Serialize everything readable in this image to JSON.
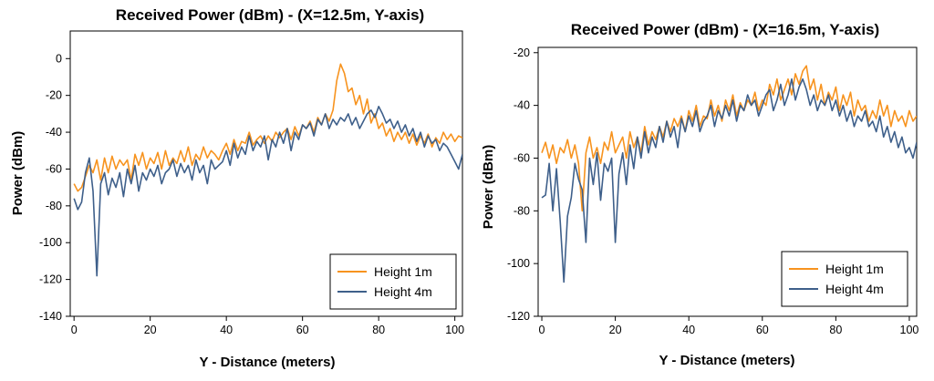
{
  "chart_data": [
    {
      "type": "line",
      "title": "Received Power (dBm) - (X=12.5m, Y-axis)",
      "xlabel": "Y - Distance (meters)",
      "ylabel": "Power (dBm)",
      "xlim": [
        -1,
        102
      ],
      "ylim": [
        -140,
        15
      ],
      "xticks": [
        0,
        20,
        40,
        60,
        80,
        100
      ],
      "yticks": [
        0,
        -20,
        -40,
        -60,
        -80,
        -100,
        -120,
        -140
      ],
      "grid": false,
      "legend_position": "bottom-right",
      "series": [
        {
          "name": "Height 1m",
          "color": "#F7931E",
          "x": [
            0,
            1,
            2,
            3,
            4,
            5,
            6,
            7,
            8,
            9,
            10,
            11,
            12,
            13,
            14,
            15,
            16,
            17,
            18,
            19,
            20,
            21,
            22,
            23,
            24,
            25,
            26,
            27,
            28,
            29,
            30,
            31,
            32,
            33,
            34,
            35,
            36,
            37,
            38,
            39,
            40,
            41,
            42,
            43,
            44,
            45,
            46,
            47,
            48,
            49,
            50,
            51,
            52,
            53,
            54,
            55,
            56,
            57,
            58,
            59,
            60,
            61,
            62,
            63,
            64,
            65,
            66,
            67,
            68,
            69,
            70,
            71,
            72,
            73,
            74,
            75,
            76,
            77,
            78,
            79,
            80,
            81,
            82,
            83,
            84,
            85,
            86,
            87,
            88,
            89,
            90,
            91,
            92,
            93,
            94,
            95,
            96,
            97,
            98,
            99,
            100,
            101,
            102
          ],
          "values": [
            -68,
            -72,
            -70,
            -64,
            -58,
            -62,
            -55,
            -66,
            -54,
            -62,
            -53,
            -60,
            -55,
            -58,
            -55,
            -66,
            -52,
            -58,
            -51,
            -60,
            -54,
            -57,
            -51,
            -60,
            -50,
            -58,
            -54,
            -57,
            -50,
            -56,
            -48,
            -58,
            -52,
            -55,
            -48,
            -54,
            -50,
            -52,
            -55,
            -50,
            -46,
            -52,
            -44,
            -50,
            -45,
            -46,
            -40,
            -47,
            -44,
            -42,
            -46,
            -42,
            -45,
            -40,
            -43,
            -40,
            -38,
            -44,
            -37,
            -42,
            -36,
            -38,
            -34,
            -40,
            -32,
            -36,
            -30,
            -34,
            -28,
            -12,
            -3,
            -8,
            -18,
            -16,
            -25,
            -20,
            -30,
            -22,
            -35,
            -30,
            -38,
            -35,
            -42,
            -38,
            -45,
            -40,
            -44,
            -40,
            -46,
            -41,
            -47,
            -42,
            -46,
            -41,
            -48,
            -43,
            -46,
            -40,
            -44,
            -41,
            -45,
            -42,
            -43
          ]
        },
        {
          "name": "Height 4m",
          "color": "#3E5F8A",
          "x": [
            0,
            1,
            2,
            3,
            4,
            5,
            6,
            7,
            8,
            9,
            10,
            11,
            12,
            13,
            14,
            15,
            16,
            17,
            18,
            19,
            20,
            21,
            22,
            23,
            24,
            25,
            26,
            27,
            28,
            29,
            30,
            31,
            32,
            33,
            34,
            35,
            36,
            37,
            38,
            39,
            40,
            41,
            42,
            43,
            44,
            45,
            46,
            47,
            48,
            49,
            50,
            51,
            52,
            53,
            54,
            55,
            56,
            57,
            58,
            59,
            60,
            61,
            62,
            63,
            64,
            65,
            66,
            67,
            68,
            69,
            70,
            71,
            72,
            73,
            74,
            75,
            76,
            77,
            78,
            79,
            80,
            81,
            82,
            83,
            84,
            85,
            86,
            87,
            88,
            89,
            90,
            91,
            92,
            93,
            94,
            95,
            96,
            97,
            98,
            99,
            100,
            101,
            102
          ],
          "values": [
            -76,
            -82,
            -78,
            -62,
            -54,
            -72,
            -118,
            -68,
            -62,
            -74,
            -65,
            -70,
            -62,
            -75,
            -60,
            -68,
            -58,
            -72,
            -62,
            -66,
            -60,
            -64,
            -58,
            -68,
            -62,
            -60,
            -55,
            -64,
            -57,
            -62,
            -58,
            -66,
            -55,
            -62,
            -58,
            -68,
            -55,
            -60,
            -58,
            -56,
            -50,
            -58,
            -46,
            -54,
            -48,
            -52,
            -42,
            -50,
            -45,
            -48,
            -42,
            -55,
            -44,
            -48,
            -40,
            -46,
            -38,
            -50,
            -40,
            -44,
            -36,
            -38,
            -35,
            -42,
            -33,
            -36,
            -30,
            -38,
            -33,
            -36,
            -32,
            -34,
            -30,
            -36,
            -32,
            -38,
            -34,
            -30,
            -28,
            -32,
            -26,
            -30,
            -35,
            -33,
            -38,
            -34,
            -40,
            -36,
            -42,
            -38,
            -45,
            -40,
            -48,
            -42,
            -46,
            -44,
            -50,
            -46,
            -48,
            -52,
            -56,
            -60,
            -52
          ]
        }
      ]
    },
    {
      "type": "line",
      "title": "Received Power (dBm) - (X=16.5m, Y-axis)",
      "xlabel": "Y - Distance (meters)",
      "ylabel": "Power (dBm)",
      "xlim": [
        -1,
        102
      ],
      "ylim": [
        -120,
        -18
      ],
      "xticks": [
        0,
        20,
        40,
        60,
        80,
        100
      ],
      "yticks": [
        -20,
        -40,
        -60,
        -80,
        -100,
        -120
      ],
      "grid": false,
      "legend_position": "bottom-right",
      "series": [
        {
          "name": "Height 1m",
          "color": "#F7931E",
          "x": [
            0,
            1,
            2,
            3,
            4,
            5,
            6,
            7,
            8,
            9,
            10,
            11,
            12,
            13,
            14,
            15,
            16,
            17,
            18,
            19,
            20,
            21,
            22,
            23,
            24,
            25,
            26,
            27,
            28,
            29,
            30,
            31,
            32,
            33,
            34,
            35,
            36,
            37,
            38,
            39,
            40,
            41,
            42,
            43,
            44,
            45,
            46,
            47,
            48,
            49,
            50,
            51,
            52,
            53,
            54,
            55,
            56,
            57,
            58,
            59,
            60,
            61,
            62,
            63,
            64,
            65,
            66,
            67,
            68,
            69,
            70,
            71,
            72,
            73,
            74,
            75,
            76,
            77,
            78,
            79,
            80,
            81,
            82,
            83,
            84,
            85,
            86,
            87,
            88,
            89,
            90,
            91,
            92,
            93,
            94,
            95,
            96,
            97,
            98,
            99,
            100,
            101,
            102
          ],
          "values": [
            -58,
            -54,
            -60,
            -55,
            -62,
            -56,
            -58,
            -53,
            -60,
            -55,
            -62,
            -80,
            -58,
            -52,
            -60,
            -56,
            -62,
            -54,
            -57,
            -50,
            -58,
            -55,
            -52,
            -60,
            -50,
            -56,
            -52,
            -58,
            -48,
            -55,
            -50,
            -53,
            -48,
            -52,
            -46,
            -50,
            -45,
            -48,
            -44,
            -50,
            -42,
            -46,
            -40,
            -48,
            -44,
            -45,
            -38,
            -44,
            -40,
            -46,
            -38,
            -42,
            -36,
            -44,
            -39,
            -42,
            -38,
            -40,
            -35,
            -42,
            -38,
            -40,
            -32,
            -36,
            -30,
            -38,
            -34,
            -30,
            -36,
            -28,
            -32,
            -27,
            -25,
            -34,
            -30,
            -38,
            -32,
            -40,
            -35,
            -38,
            -33,
            -42,
            -36,
            -40,
            -35,
            -44,
            -38,
            -42,
            -40,
            -46,
            -42,
            -45,
            -38,
            -44,
            -40,
            -48,
            -42,
            -46,
            -44,
            -48,
            -42,
            -46,
            -44
          ]
        },
        {
          "name": "Height 4m",
          "color": "#3E5F8A",
          "x": [
            0,
            1,
            2,
            3,
            4,
            5,
            6,
            7,
            8,
            9,
            10,
            11,
            12,
            13,
            14,
            15,
            16,
            17,
            18,
            19,
            20,
            21,
            22,
            23,
            24,
            25,
            26,
            27,
            28,
            29,
            30,
            31,
            32,
            33,
            34,
            35,
            36,
            37,
            38,
            39,
            40,
            41,
            42,
            43,
            44,
            45,
            46,
            47,
            48,
            49,
            50,
            51,
            52,
            53,
            54,
            55,
            56,
            57,
            58,
            59,
            60,
            61,
            62,
            63,
            64,
            65,
            66,
            67,
            68,
            69,
            70,
            71,
            72,
            73,
            74,
            75,
            76,
            77,
            78,
            79,
            80,
            81,
            82,
            83,
            84,
            85,
            86,
            87,
            88,
            89,
            90,
            91,
            92,
            93,
            94,
            95,
            96,
            97,
            98,
            99,
            100,
            101,
            102
          ],
          "values": [
            -75,
            -74,
            -62,
            -80,
            -64,
            -84,
            -107,
            -82,
            -75,
            -62,
            -68,
            -72,
            -92,
            -60,
            -70,
            -58,
            -76,
            -62,
            -65,
            -60,
            -92,
            -66,
            -58,
            -70,
            -55,
            -64,
            -52,
            -60,
            -50,
            -58,
            -52,
            -56,
            -48,
            -54,
            -46,
            -52,
            -48,
            -56,
            -45,
            -50,
            -44,
            -48,
            -42,
            -50,
            -46,
            -44,
            -40,
            -48,
            -42,
            -45,
            -40,
            -44,
            -38,
            -46,
            -40,
            -42,
            -36,
            -40,
            -38,
            -44,
            -40,
            -36,
            -34,
            -42,
            -38,
            -32,
            -40,
            -36,
            -30,
            -38,
            -33,
            -30,
            -34,
            -40,
            -36,
            -42,
            -38,
            -40,
            -36,
            -42,
            -38,
            -44,
            -40,
            -46,
            -42,
            -48,
            -44,
            -46,
            -42,
            -48,
            -46,
            -50,
            -44,
            -52,
            -48,
            -54,
            -50,
            -56,
            -52,
            -58,
            -56,
            -60,
            -54
          ]
        }
      ]
    }
  ]
}
